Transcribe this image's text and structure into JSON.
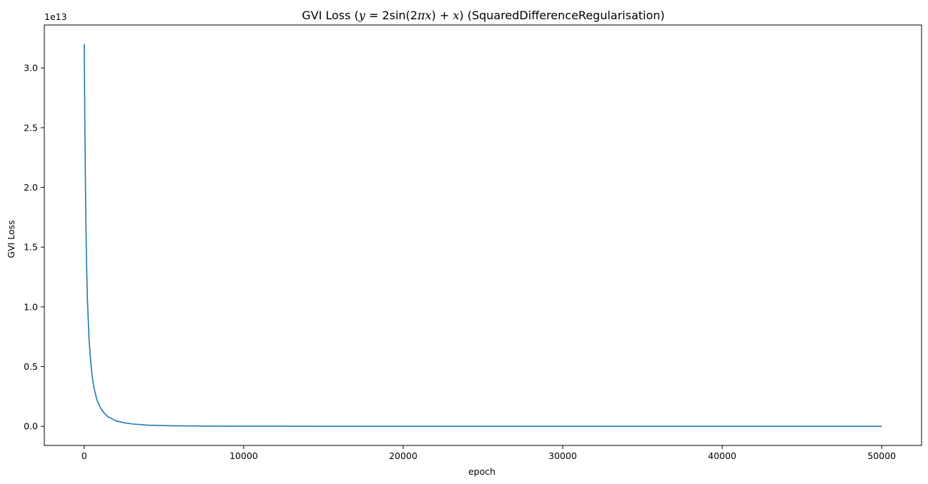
{
  "chart_data": {
    "type": "line",
    "title": {
      "prefix": "GVI Loss (",
      "math_y": "y",
      "math_eq": " = 2sin(2",
      "math_pi": "π",
      "math_x1": "x",
      "math_mid": ") + ",
      "math_x2": "x",
      "suffix": ") (SquaredDifferenceRegularisation)"
    },
    "xlabel": "epoch",
    "ylabel": "GVI Loss",
    "y_offset_label": "1e13",
    "xlim": [
      -2500,
      52500
    ],
    "ylim": [
      -0.16,
      3.36
    ],
    "x_ticks": [
      0,
      10000,
      20000,
      30000,
      40000,
      50000
    ],
    "x_tick_labels": [
      "0",
      "10000",
      "20000",
      "30000",
      "40000",
      "50000"
    ],
    "y_ticks": [
      0.0,
      0.5,
      1.0,
      1.5,
      2.0,
      2.5,
      3.0
    ],
    "y_tick_labels": [
      "0.0",
      "0.5",
      "1.0",
      "1.5",
      "2.0",
      "2.5",
      "3.0"
    ],
    "grid": false,
    "series": [
      {
        "color": "#1f77b4",
        "x": [
          0,
          50,
          100,
          150,
          200,
          300,
          400,
          500,
          600,
          800,
          1000,
          1250,
          1500,
          2000,
          2500,
          3000,
          4000,
          5000,
          6000,
          8000,
          10000,
          15000,
          20000,
          30000,
          40000,
          50000
        ],
        "values": [
          3.2,
          2.4,
          1.75,
          1.35,
          1.07,
          0.74,
          0.55,
          0.42,
          0.33,
          0.22,
          0.16,
          0.11,
          0.08,
          0.045,
          0.03,
          0.02,
          0.01,
          0.006,
          0.004,
          0.002,
          0.001,
          0.0005,
          0.0003,
          0.0002,
          0.0001,
          0.0001
        ]
      }
    ]
  }
}
